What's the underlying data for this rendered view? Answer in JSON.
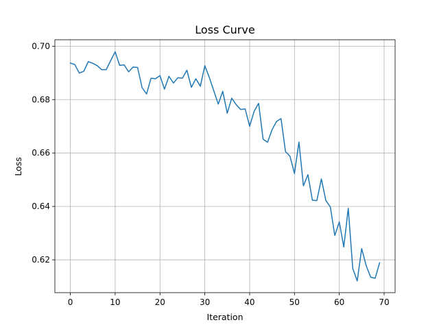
{
  "chart_data": {
    "type": "line",
    "title": "Loss Curve",
    "xlabel": "Iteration",
    "ylabel": "Loss",
    "xlim": [
      -3.45,
      72.45
    ],
    "ylim": [
      0.6077,
      0.7024
    ],
    "xticks": [
      0,
      10,
      20,
      30,
      40,
      50,
      60,
      70
    ],
    "yticks": [
      0.62,
      0.64,
      0.66,
      0.68,
      0.7
    ],
    "ytick_labels": [
      "0.62",
      "0.64",
      "0.66",
      "0.68",
      "0.70"
    ],
    "grid": true,
    "color": "#1f77b4",
    "series": [
      {
        "values": [
          0.6937,
          0.6931,
          0.6899,
          0.6906,
          0.6942,
          0.6936,
          0.6927,
          0.6912,
          0.6912,
          0.6946,
          0.6979,
          0.6928,
          0.693,
          0.6904,
          0.6922,
          0.692,
          0.6845,
          0.6821,
          0.688,
          0.6878,
          0.689,
          0.6839,
          0.6887,
          0.6862,
          0.6882,
          0.688,
          0.691,
          0.6846,
          0.6878,
          0.685,
          0.6927,
          0.6883,
          0.6833,
          0.6783,
          0.6831,
          0.6749,
          0.6805,
          0.6781,
          0.6763,
          0.6765,
          0.67,
          0.6756,
          0.6786,
          0.6652,
          0.664,
          0.6687,
          0.6718,
          0.6729,
          0.6605,
          0.6588,
          0.6523,
          0.6641,
          0.6477,
          0.6519,
          0.6423,
          0.6422,
          0.6503,
          0.6422,
          0.6398,
          0.6291,
          0.6342,
          0.6248,
          0.6393,
          0.6168,
          0.6121,
          0.6242,
          0.6178,
          0.6135,
          0.6131,
          0.6189
        ]
      }
    ]
  }
}
